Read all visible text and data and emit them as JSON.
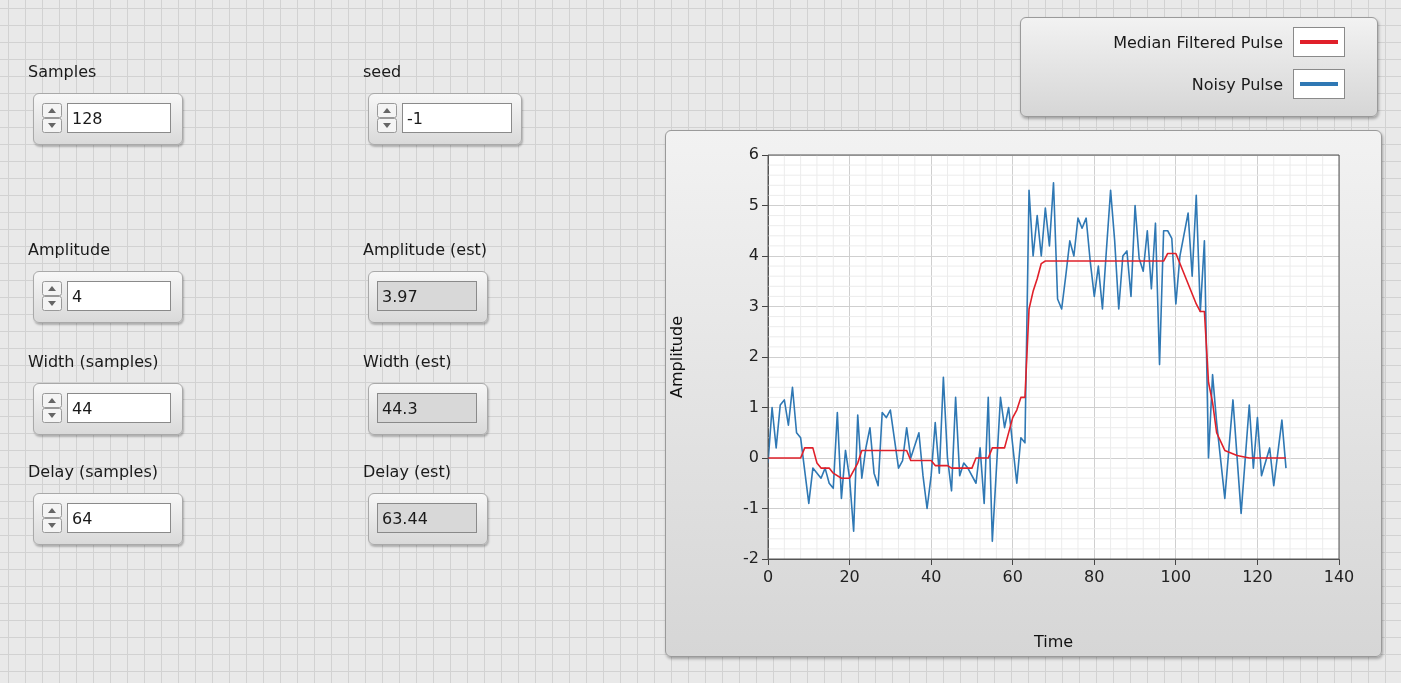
{
  "chart_data": [
    {
      "type": "other",
      "annotations": [
        "Samples",
        "128",
        "seed",
        "-1",
        "Amplitude",
        "4",
        "Amplitude (est)",
        "3.97",
        "Width (samples)",
        "44",
        "Width (est)",
        "44.3",
        "Delay (samples)",
        "64",
        "Delay (est)",
        "63.44"
      ]
    },
    {
      "type": "line",
      "xlabel": "Time",
      "ylabel": "Amplitude",
      "xlim": [
        0,
        140
      ],
      "xticks": [
        0,
        20,
        40,
        60,
        80,
        100,
        120,
        140
      ],
      "ylim": [
        -2,
        6
      ],
      "yticks": [
        -2,
        -1,
        0,
        1,
        2,
        3,
        4,
        5,
        6
      ],
      "grid": true,
      "legend": "top right",
      "marker": "none",
      "line_style": "solid",
      "series": [
        {
          "name": "Median Filtered Pulse",
          "color": "#e0202a",
          "x": [
            0,
            8,
            9,
            11,
            12,
            13,
            15,
            16,
            18,
            20,
            22,
            23,
            34,
            35,
            40,
            41,
            44,
            45,
            50,
            51,
            54,
            55,
            58,
            60,
            61,
            62,
            63,
            64,
            65,
            66,
            67,
            68,
            97,
            98,
            100,
            101,
            103,
            105,
            106,
            107,
            108,
            109,
            110,
            112,
            115,
            118,
            127
          ],
          "values": [
            0,
            0,
            0.2,
            0.2,
            -0.1,
            -0.2,
            -0.2,
            -0.3,
            -0.4,
            -0.4,
            -0.1,
            0.15,
            0.15,
            -0.05,
            -0.05,
            -0.15,
            -0.15,
            -0.2,
            -0.2,
            0,
            0,
            0.2,
            0.2,
            0.8,
            0.95,
            1.2,
            1.2,
            2.95,
            3.3,
            3.55,
            3.85,
            3.9,
            3.9,
            4.05,
            4.05,
            3.85,
            3.45,
            3.05,
            2.9,
            2.9,
            1.5,
            1.1,
            0.5,
            0.15,
            0.05,
            0,
            0
          ]
        },
        {
          "name": "Noisy Pulse",
          "color": "#2f78b4",
          "x": [
            0,
            1,
            2,
            3,
            4,
            5,
            6,
            7,
            8,
            10,
            11,
            13,
            14,
            15,
            16,
            17,
            18,
            19,
            20,
            21,
            22,
            23,
            24,
            25,
            26,
            27,
            28,
            29,
            30,
            32,
            33,
            34,
            35,
            37,
            38,
            39,
            40,
            41,
            42,
            43,
            44,
            45,
            46,
            47,
            48,
            49,
            51,
            52,
            53,
            54,
            55,
            57,
            58,
            59,
            61,
            62,
            63,
            64,
            65,
            66,
            67,
            68,
            69,
            70,
            71,
            72,
            73,
            74,
            75,
            76,
            77,
            78,
            79,
            80,
            81,
            82,
            83,
            84,
            85,
            86,
            87,
            88,
            89,
            90,
            91,
            92,
            93,
            94,
            95,
            96,
            97,
            98,
            99,
            100,
            101,
            103,
            104,
            105,
            106,
            107,
            108,
            109,
            110,
            112,
            114,
            116,
            118,
            119,
            120,
            121,
            123,
            124,
            126,
            127
          ],
          "values": [
            -0.1,
            1.0,
            0.2,
            1.05,
            1.15,
            0.65,
            1.4,
            0.5,
            0.4,
            -0.9,
            -0.2,
            -0.4,
            -0.2,
            -0.5,
            -0.6,
            0.9,
            -0.8,
            0.15,
            -0.4,
            -1.45,
            0.85,
            -0.4,
            0.2,
            0.6,
            -0.3,
            -0.55,
            0.9,
            0.8,
            0.95,
            -0.2,
            -0.05,
            0.6,
            0,
            0.5,
            -0.35,
            -1.0,
            -0.35,
            0.7,
            -0.3,
            1.6,
            0,
            -0.65,
            1.2,
            -0.35,
            -0.1,
            -0.2,
            -0.5,
            0.2,
            -0.9,
            1.2,
            -1.65,
            1.2,
            0.6,
            1.0,
            -0.5,
            0.4,
            0.3,
            5.3,
            4.0,
            4.8,
            4.0,
            4.95,
            4.2,
            5.45,
            3.15,
            2.95,
            3.6,
            4.3,
            4.0,
            4.75,
            4.55,
            4.75,
            3.9,
            3.2,
            3.8,
            2.95,
            4.15,
            5.3,
            4.3,
            2.95,
            4.0,
            4.1,
            3.2,
            5.0,
            3.95,
            3.7,
            4.5,
            3.35,
            4.65,
            1.85,
            4.5,
            4.5,
            4.35,
            3.05,
            4.0,
            4.85,
            3.6,
            5.2,
            2.9,
            4.3,
            0.0,
            1.65,
            0.7,
            -0.8,
            1.15,
            -1.1,
            1.05,
            -0.2,
            0.8,
            -0.35,
            0.2,
            -0.55,
            0.75,
            -0.2
          ]
        }
      ]
    }
  ]
}
